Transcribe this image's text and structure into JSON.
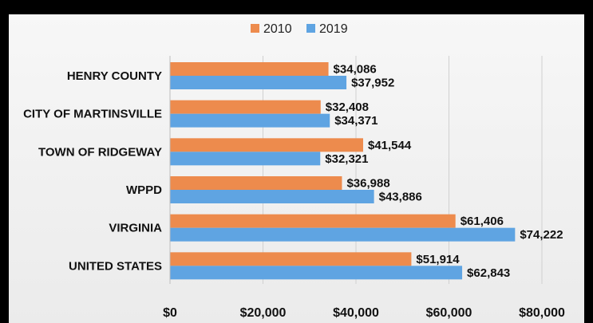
{
  "chart_data": {
    "type": "bar",
    "orientation": "horizontal",
    "categories": [
      "HENRY COUNTY",
      "CITY OF MARTINSVILLE",
      "TOWN OF RIDGEWAY",
      "WPPD",
      "VIRGINIA",
      "UNITED STATES"
    ],
    "series": [
      {
        "name": "2010",
        "color": "#ed8b4d",
        "values": [
          34086,
          32408,
          41544,
          36988,
          61406,
          51914
        ],
        "labels": [
          "$34,086",
          "$32,408",
          "$41,544",
          "$36,988",
          "$61,406",
          "$51,914"
        ]
      },
      {
        "name": "2019",
        "color": "#5fa4e2",
        "values": [
          37952,
          34371,
          32321,
          43886,
          74222,
          62843
        ],
        "labels": [
          "$37,952",
          "$34,371",
          "$32,321",
          "$43,886",
          "$74,222",
          "$62,843"
        ]
      }
    ],
    "xlim": [
      0,
      80000
    ],
    "xticks": [
      0,
      20000,
      40000,
      60000,
      80000
    ],
    "xtick_labels": [
      "$0",
      "$20,000",
      "$40,000",
      "$60,000",
      "$80,000"
    ],
    "grid": true,
    "legend_position": "top"
  }
}
